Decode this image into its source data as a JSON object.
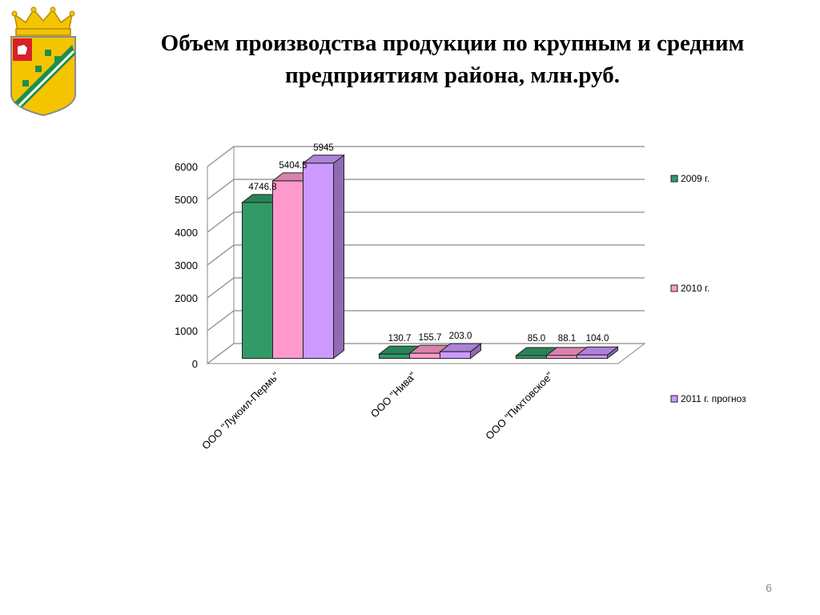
{
  "slide": {
    "title": "Объем производства продукции по крупным и средним предприятиям района, млн.руб.",
    "page_number": "6"
  },
  "emblem": {
    "icon": "coat-of-arms-icon"
  },
  "chart_data": {
    "type": "bar",
    "title": "",
    "xlabel": "",
    "ylabel": "",
    "categories": [
      "ООО \"Лукоил-Пермь\"",
      "ООО \"Нива\"",
      "ООО \"Пихтовское\""
    ],
    "series": [
      {
        "name": "2009 г.",
        "values": [
          4746.8,
          130.7,
          85.0
        ],
        "labels": [
          "4746.8",
          "130.7",
          "85.0"
        ],
        "color": "#339966"
      },
      {
        "name": "2010 г.",
        "values": [
          5404.5,
          155.7,
          88.1
        ],
        "labels": [
          "5404.5",
          "155.7",
          "88.1"
        ],
        "color": "#ff99cc"
      },
      {
        "name": "2011 г. прогноз",
        "values": [
          5945,
          203.0,
          104.0
        ],
        "labels": [
          "5945",
          "203.0",
          "104.0"
        ],
        "color": "#cc99ff"
      }
    ],
    "yticks": [
      "0",
      "1000",
      "2000",
      "3000",
      "4000",
      "5000",
      "6000"
    ],
    "ylim": [
      0,
      6000
    ],
    "grid": true,
    "legend_position": "right",
    "style": "3d"
  }
}
